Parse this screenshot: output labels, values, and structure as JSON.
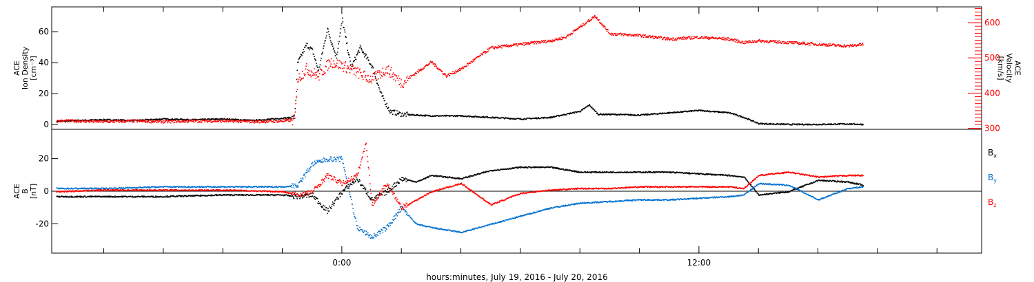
{
  "chart_data": [
    {
      "type": "scatter",
      "panel": "top",
      "left_axis": {
        "title_lines": [
          "ACE",
          "Ion Density",
          "[cm⁻³]"
        ],
        "ticks": [
          0,
          20,
          40,
          60
        ],
        "ylim": [
          -3,
          76
        ],
        "color": "#000000"
      },
      "right_axis": {
        "title_lines": [
          "ACE",
          "Velocity",
          "[km/s]"
        ],
        "ticks": [
          300,
          400,
          500,
          600
        ],
        "ylim": [
          297,
          645
        ],
        "color": "#ff0000"
      },
      "series": [
        {
          "color": "#000000",
          "axis": "left",
          "x": [
            -9.6,
            -9,
            -8,
            -7,
            -6,
            -5,
            -4,
            -3,
            -2,
            -1.6,
            -1.5,
            -1.2,
            -1,
            -0.8,
            -0.5,
            -0.2,
            0,
            0.3,
            0.6,
            1,
            1.3,
            1.6,
            2,
            3,
            4,
            5,
            6,
            7,
            8,
            8.3,
            8.6,
            9,
            10,
            11,
            12,
            13,
            13.5,
            14,
            15,
            16,
            17,
            17.5
          ],
          "y": [
            2.5,
            3,
            3.5,
            3,
            4,
            3.5,
            4,
            3,
            4.5,
            5,
            40,
            52,
            48,
            35,
            62,
            44,
            68,
            37,
            50,
            38,
            20,
            9,
            7,
            6,
            6,
            5,
            4,
            5,
            9,
            13,
            7,
            7,
            6.5,
            8,
            9.5,
            8,
            5,
            1,
            0.5,
            0.5,
            0.8,
            0.5
          ]
        },
        {
          "color": "#ff0000",
          "axis": "right",
          "x": [
            -9.6,
            -9,
            -8,
            -7,
            -6,
            -5,
            -4,
            -3,
            -2,
            -1.6,
            -1.5,
            -1.2,
            -0.8,
            -0.4,
            0,
            0.5,
            1,
            1.5,
            2,
            2.5,
            3,
            3.5,
            4,
            4.5,
            5,
            6,
            7,
            7.5,
            8,
            8.5,
            9,
            10,
            11,
            12,
            13,
            13.5,
            14,
            15,
            16,
            17,
            17.5
          ],
          "y": [
            322,
            322,
            320,
            322,
            320,
            322,
            322,
            320,
            322,
            325,
            440,
            470,
            450,
            490,
            480,
            460,
            440,
            470,
            430,
            460,
            490,
            450,
            470,
            500,
            530,
            540,
            550,
            560,
            590,
            620,
            570,
            565,
            555,
            560,
            555,
            545,
            550,
            545,
            540,
            535,
            540
          ]
        }
      ]
    },
    {
      "type": "scatter",
      "panel": "bottom",
      "left_axis": {
        "title_lines": [
          "ACE",
          "B",
          "[nT]"
        ],
        "ticks": [
          -20,
          0,
          20
        ],
        "ylim": [
          -38,
          38
        ],
        "color": "#000000"
      },
      "legend_placement": "right",
      "series": [
        {
          "name_base": "B",
          "name_sub": "x",
          "color": "#000000",
          "x": [
            -9.6,
            -8,
            -6,
            -4,
            -2,
            -1.5,
            -1,
            -0.5,
            0,
            0.5,
            1,
            1.5,
            2,
            2.5,
            3,
            4,
            5,
            6,
            7,
            8,
            9,
            10,
            11,
            12,
            13,
            13.5,
            14,
            15,
            16,
            17,
            17.5
          ],
          "y": [
            -3,
            -3,
            -3,
            -2,
            -2,
            -3,
            -2,
            -12,
            0,
            8,
            -5,
            0,
            8,
            6,
            10,
            8,
            13,
            15,
            15,
            12,
            12,
            12,
            12,
            11,
            10,
            9,
            -2,
            0,
            7,
            6,
            4
          ]
        },
        {
          "name_base": "B",
          "name_sub": "y",
          "color": "#0070d0",
          "x": [
            -9.6,
            -8,
            -6,
            -4,
            -2,
            -1.5,
            -1,
            -0.5,
            0,
            0.5,
            1,
            1.5,
            2,
            2.5,
            3,
            4,
            5,
            6,
            7,
            8,
            9,
            10,
            11,
            12,
            13,
            13.5,
            14,
            15,
            16,
            17,
            17.5
          ],
          "y": [
            2,
            2,
            3,
            3,
            3,
            4,
            17,
            20,
            20,
            -22,
            -28,
            -22,
            -10,
            -20,
            -22,
            -25,
            -20,
            -15,
            -10,
            -7,
            -6,
            -5,
            -5,
            -4,
            -3,
            -2,
            5,
            4,
            -5,
            2,
            3
          ]
        },
        {
          "name_base": "B",
          "name_sub": "z",
          "color": "#ff0000",
          "x": [
            -9.6,
            -8,
            -6,
            -4,
            -2,
            -1.5,
            -1,
            -0.5,
            0,
            0.5,
            0.8,
            1,
            1.5,
            2,
            2.5,
            3,
            4,
            5,
            6,
            7,
            8,
            9,
            10,
            11,
            12,
            13,
            13.5,
            14,
            15,
            16,
            17,
            17.5
          ],
          "y": [
            0,
            1,
            1,
            1,
            0,
            -2,
            0,
            10,
            5,
            10,
            30,
            -8,
            5,
            -10,
            -5,
            0,
            5,
            -8,
            -1,
            1,
            2,
            2,
            3,
            3,
            3,
            3,
            2,
            10,
            12,
            9,
            10,
            10
          ]
        }
      ]
    }
  ],
  "time_axis": {
    "range": [
      -9.75,
      21.5
    ],
    "labeled_ticks": [
      {
        "value": 0,
        "label": "0:00"
      },
      {
        "value": 12,
        "label": "12:00"
      }
    ],
    "minor_every_hours": 2,
    "title": "hours:minutes, July 19, 2016 - July 20, 2016"
  }
}
